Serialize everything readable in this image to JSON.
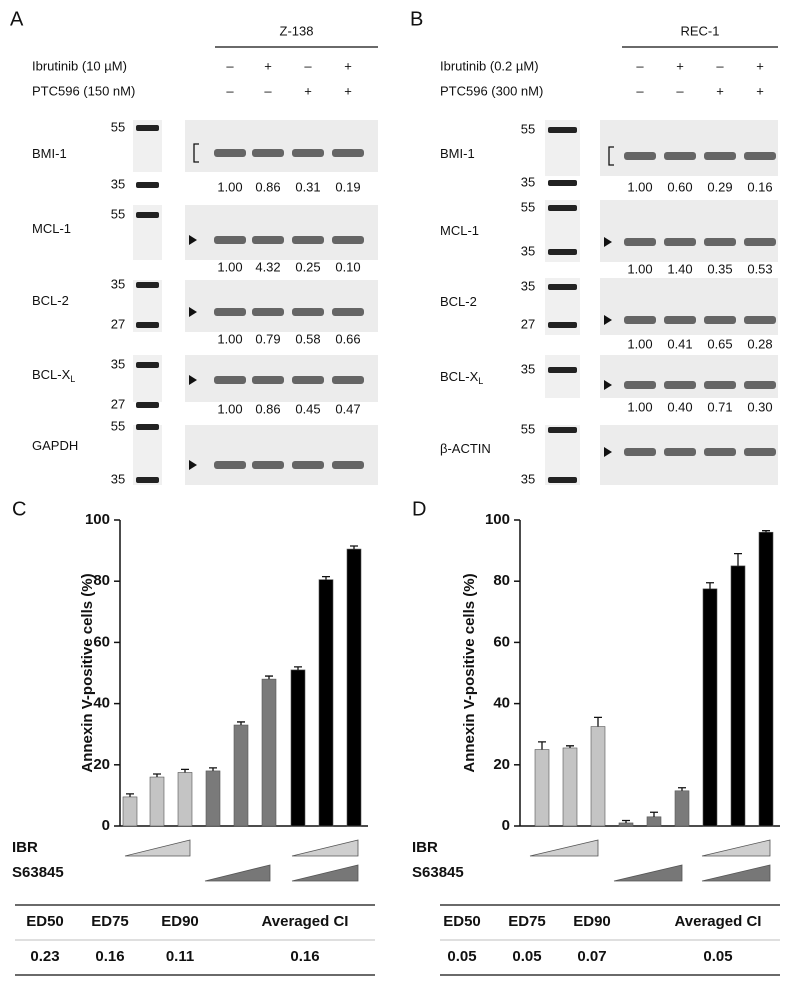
{
  "blots": [
    {
      "panel": "A",
      "cell_line": "Z-138",
      "treatments": [
        {
          "label": "Ibrutinib (10 µM)",
          "signs": [
            "–",
            "+",
            "–",
            "+"
          ]
        },
        {
          "label": "PTC596 (150 nM)",
          "signs": [
            "–",
            "–",
            "+",
            "+"
          ]
        }
      ],
      "rows": [
        {
          "label": "BMI-1",
          "markers": [
            "55",
            "35"
          ],
          "quant": [
            "1.00",
            "0.86",
            "0.31",
            "0.19"
          ]
        },
        {
          "label": "MCL-1",
          "markers": [
            "55"
          ],
          "quant": [
            "1.00",
            "4.32",
            "0.25",
            "0.10"
          ]
        },
        {
          "label": "BCL-2",
          "markers": [
            "35",
            "27"
          ],
          "quant": [
            "1.00",
            "0.79",
            "0.58",
            "0.66"
          ]
        },
        {
          "label": "BCL-X",
          "sub": "L",
          "markers": [
            "35",
            "27"
          ],
          "quant": [
            "1.00",
            "0.86",
            "0.45",
            "0.47"
          ]
        },
        {
          "label": "GAPDH",
          "markers": [
            "55",
            "35"
          ]
        }
      ]
    },
    {
      "panel": "B",
      "cell_line": "REC-1",
      "treatments": [
        {
          "label": "Ibrutinib (0.2 µM)",
          "signs": [
            "–",
            "+",
            "–",
            "+"
          ]
        },
        {
          "label": "PTC596 (300 nM)",
          "signs": [
            "–",
            "–",
            "+",
            "+"
          ]
        }
      ],
      "rows": [
        {
          "label": "BMI-1",
          "markers": [
            "55",
            "35"
          ],
          "quant": [
            "1.00",
            "0.60",
            "0.29",
            "0.16"
          ]
        },
        {
          "label": "MCL-1",
          "markers": [
            "55",
            "35"
          ],
          "quant": [
            "1.00",
            "1.40",
            "0.35",
            "0.53"
          ]
        },
        {
          "label": "BCL-2",
          "markers": [
            "35",
            "27"
          ],
          "quant": [
            "1.00",
            "0.41",
            "0.65",
            "0.28"
          ]
        },
        {
          "label": "BCL-X",
          "sub": "L",
          "markers": [
            "35"
          ],
          "quant": [
            "1.00",
            "0.40",
            "0.71",
            "0.30"
          ]
        },
        {
          "label": "β-ACTIN",
          "markers": [
            "55",
            "35"
          ]
        }
      ]
    }
  ],
  "chart_data": [
    {
      "type": "bar",
      "panel": "C",
      "y_label": "Annexin V-positive cells (%)",
      "values": [
        9.5,
        16,
        17.5,
        18,
        33,
        48,
        51,
        80.5,
        90.5
      ],
      "errors": [
        1,
        1,
        1,
        1,
        1,
        1,
        1,
        1,
        1
      ],
      "colors": [
        "#c4c4c4",
        "#c4c4c4",
        "#c4c4c4",
        "#7a7a7a",
        "#7a7a7a",
        "#7a7a7a",
        "#000000",
        "#000000",
        "#000000"
      ],
      "ylim": [
        0,
        100
      ],
      "yticks": [
        0,
        20,
        40,
        60,
        80,
        100
      ],
      "factors": [
        "IBR",
        "S63845"
      ]
    },
    {
      "type": "bar",
      "panel": "D",
      "y_label": "Annexin V-positive cells (%)",
      "values": [
        25,
        25.5,
        32.5,
        1,
        3,
        11.5,
        77.5,
        85,
        96
      ],
      "errors": [
        2.5,
        0.7,
        3,
        0.8,
        1.5,
        1,
        2,
        4,
        0.5
      ],
      "colors": [
        "#c4c4c4",
        "#c4c4c4",
        "#c4c4c4",
        "#7a7a7a",
        "#7a7a7a",
        "#7a7a7a",
        "#000000",
        "#000000",
        "#000000"
      ],
      "ylim": [
        0,
        100
      ],
      "yticks": [
        0,
        20,
        40,
        60,
        80,
        100
      ],
      "factors": [
        "IBR",
        "S63845"
      ]
    }
  ],
  "ci_tables": [
    {
      "header": [
        "ED50",
        "ED75",
        "ED90",
        "Averaged CI"
      ],
      "row": [
        "0.23",
        "0.16",
        "0.11",
        "0.16"
      ]
    },
    {
      "header": [
        "ED50",
        "ED75",
        "ED90",
        "Averaged CI"
      ],
      "row": [
        "0.05",
        "0.05",
        "0.07",
        "0.05"
      ]
    }
  ]
}
